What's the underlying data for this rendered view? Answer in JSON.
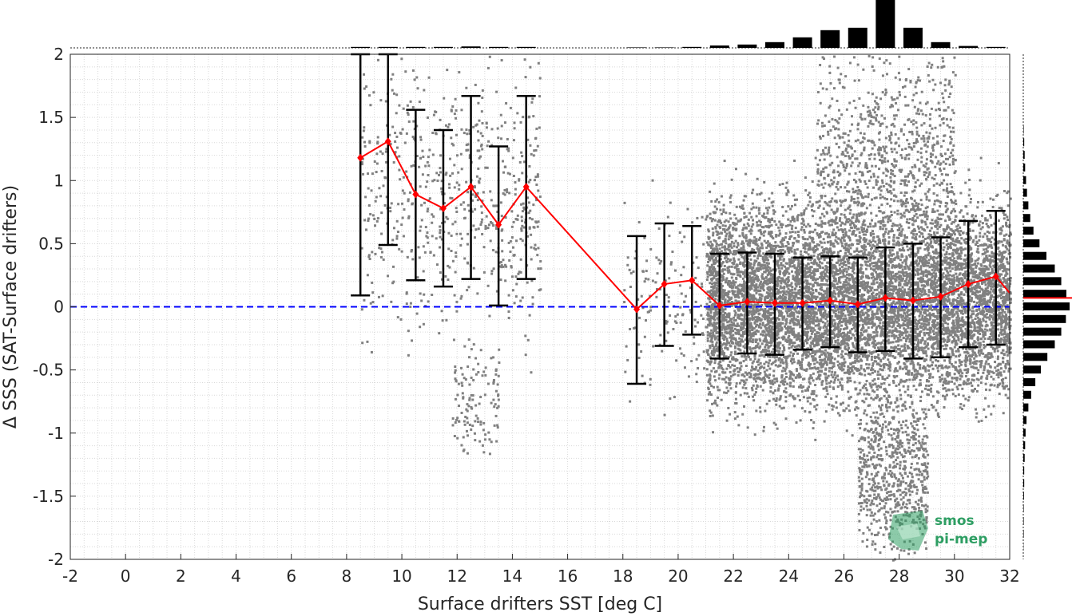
{
  "chart_data": {
    "type": "scatter",
    "xlabel": "Surface drifters SST [deg C]",
    "ylabel": "Δ SSS (SAT-Surface drifters)",
    "xlim": [
      -2,
      32
    ],
    "ylim": [
      -2,
      2
    ],
    "x_ticks": [
      "-2",
      "0",
      "2",
      "4",
      "6",
      "8",
      "10",
      "12",
      "14",
      "16",
      "18",
      "20",
      "22",
      "24",
      "26",
      "28",
      "30",
      "32"
    ],
    "y_ticks": [
      "2",
      "1.5",
      "1",
      "0.5",
      "0",
      "-0.5",
      "-1",
      "-1.5",
      "-2"
    ],
    "grid": "minor dotted",
    "reference_line": {
      "y": 0,
      "color": "#0000ff",
      "style": "dashed"
    },
    "colors": {
      "scatter": "#808080",
      "mean": "#ff0000",
      "errorbar": "#000000",
      "histogram": "#000000"
    },
    "binned_stats": {
      "x": [
        8.5,
        9.5,
        10.5,
        11.5,
        12.5,
        13.5,
        14.5,
        18.5,
        19.5,
        20.5,
        21.5,
        22.5,
        23.5,
        24.5,
        25.5,
        26.5,
        27.5,
        28.5,
        29.5,
        30.5,
        31.5,
        32.0
      ],
      "mean": [
        1.18,
        1.31,
        0.89,
        0.78,
        0.95,
        0.65,
        0.95,
        -0.02,
        0.18,
        0.21,
        0.01,
        0.04,
        0.03,
        0.03,
        0.05,
        0.02,
        0.07,
        0.05,
        0.08,
        0.18,
        0.24,
        0.11
      ],
      "lower": [
        0.09,
        0.49,
        0.21,
        0.16,
        0.22,
        0.01,
        0.22,
        -0.61,
        -0.31,
        -0.22,
        -0.41,
        -0.37,
        -0.38,
        -0.34,
        -0.32,
        -0.36,
        -0.35,
        -0.41,
        -0.4,
        -0.32,
        -0.3,
        null
      ],
      "upper": [
        2.0,
        2.0,
        1.56,
        1.4,
        1.67,
        1.27,
        1.67,
        0.56,
        0.66,
        0.64,
        0.42,
        0.43,
        0.42,
        0.39,
        0.4,
        0.39,
        0.47,
        0.5,
        0.55,
        0.68,
        0.76,
        null
      ]
    },
    "scatter_clusters": [
      {
        "x_range": [
          8.5,
          15
        ],
        "y_center": 0.9,
        "y_spread": 0.55,
        "n": 700
      },
      {
        "x_range": [
          11.8,
          13.5
        ],
        "y_center": -0.75,
        "y_spread": 0.2,
        "n": 120
      },
      {
        "x_range": [
          18,
          21
        ],
        "y_center": 0.1,
        "y_spread": 0.4,
        "n": 150
      },
      {
        "x_range": [
          21,
          32
        ],
        "y_center": 0.05,
        "y_spread": 0.38,
        "n": 9000
      },
      {
        "x_range": [
          26.5,
          29
        ],
        "y_center": -1.3,
        "y_spread": 0.3,
        "n": 700
      },
      {
        "x_range": [
          25,
          30
        ],
        "y_center": 1.2,
        "y_spread": 0.4,
        "n": 900
      }
    ],
    "top_histogram": {
      "bin_centers": [
        8.5,
        9.5,
        10.5,
        11.5,
        12.5,
        13.5,
        14.5,
        18.5,
        19.5,
        20.5,
        21.5,
        22.5,
        23.5,
        24.5,
        25.5,
        26.5,
        27.5,
        28.5,
        29.5,
        30.5,
        31.5
      ],
      "heights": [
        0.02,
        0.02,
        0.02,
        0.02,
        0.03,
        0.02,
        0.02,
        0.01,
        0.01,
        0.02,
        0.05,
        0.07,
        0.12,
        0.22,
        0.37,
        0.42,
        1.0,
        0.42,
        0.12,
        0.04,
        0.02
      ]
    },
    "right_histogram": {
      "bin_centers": [
        1.4,
        1.3,
        1.2,
        1.1,
        1.0,
        0.9,
        0.8,
        0.7,
        0.6,
        0.5,
        0.4,
        0.3,
        0.2,
        0.1,
        0.0,
        -0.1,
        -0.2,
        -0.3,
        -0.4,
        -0.5,
        -0.6,
        -0.7,
        -0.8,
        -0.9,
        -1.0,
        -1.1,
        -1.2,
        -1.3,
        -1.4,
        -1.5,
        -1.6,
        -1.7,
        -1.8,
        -1.9
      ],
      "heights": [
        0.01,
        0.02,
        0.03,
        0.04,
        0.06,
        0.08,
        0.11,
        0.15,
        0.22,
        0.35,
        0.5,
        0.68,
        0.82,
        0.93,
        1.0,
        0.92,
        0.82,
        0.68,
        0.52,
        0.38,
        0.26,
        0.17,
        0.11,
        0.07,
        0.05,
        0.04,
        0.03,
        0.02,
        0.02,
        0.015,
        0.01,
        0.01,
        0.01,
        0.005
      ]
    },
    "right_histogram_mean": 0.07
  },
  "logo": {
    "line1": "smos",
    "line2": "pi-mep",
    "color": "#2e9e63"
  }
}
